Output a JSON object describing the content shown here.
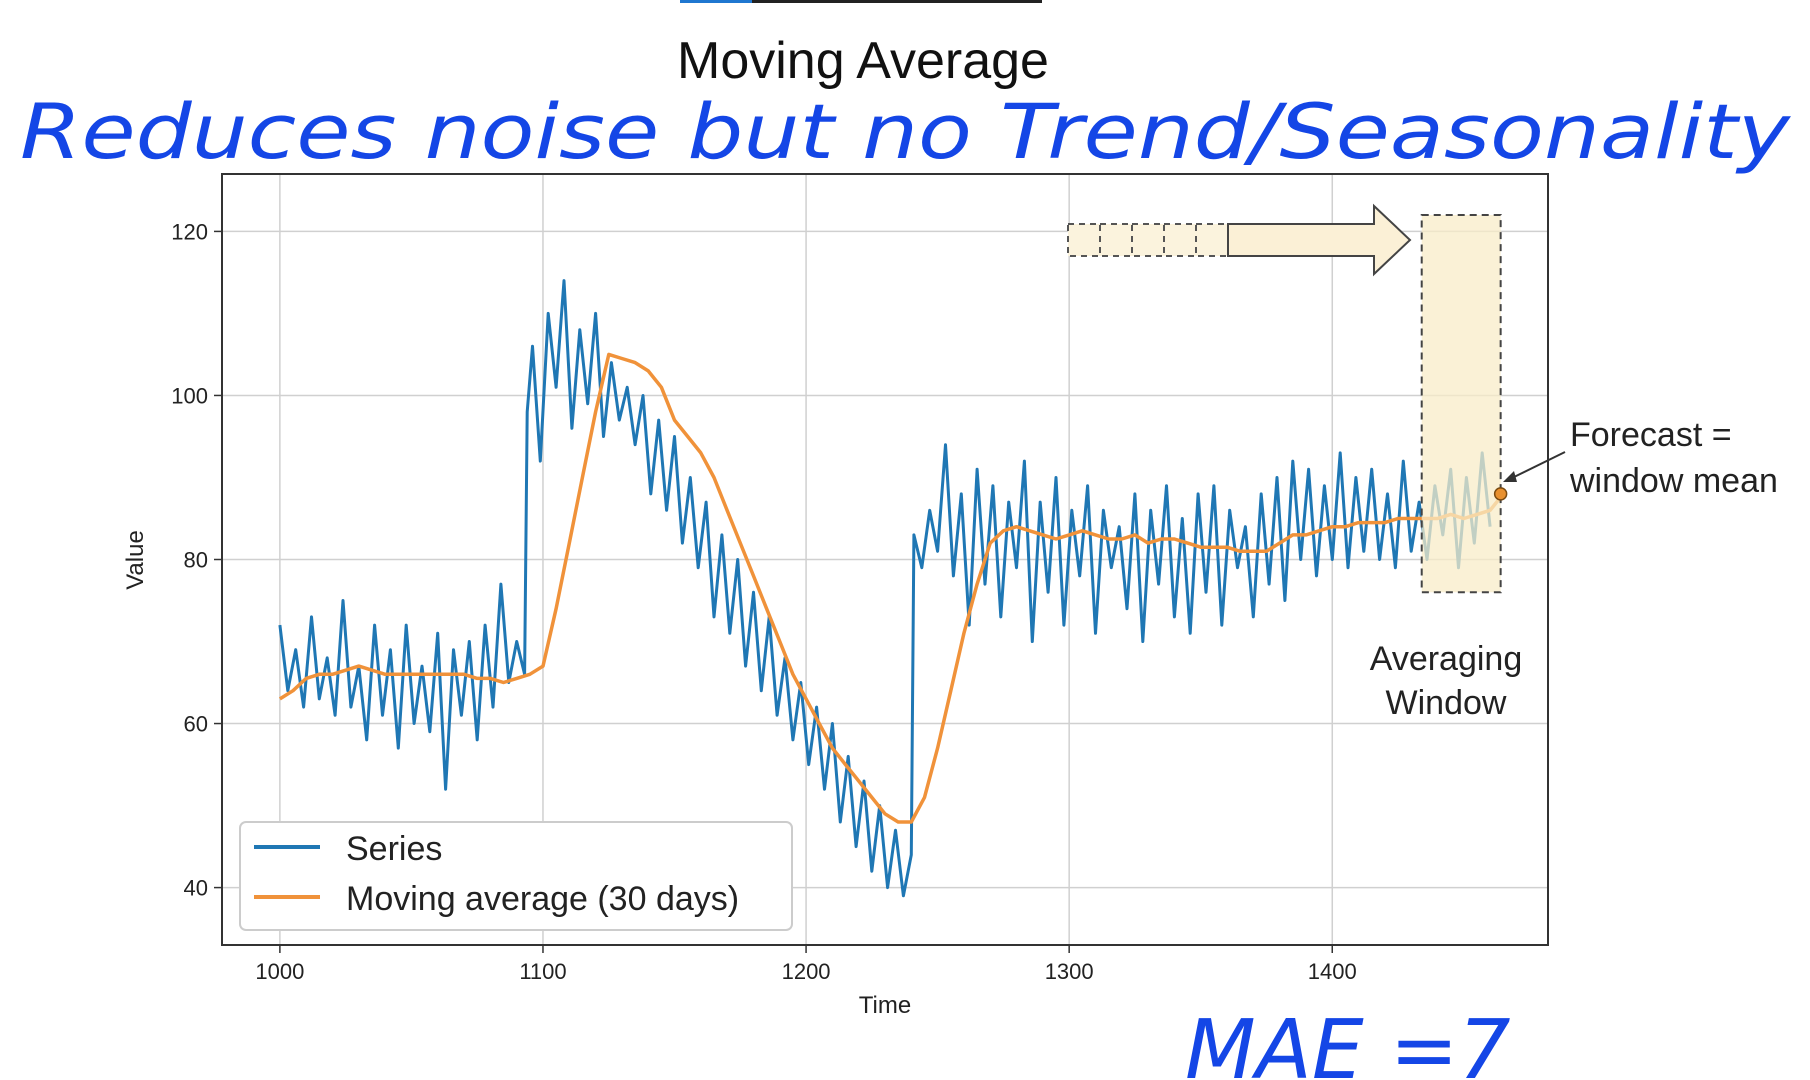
{
  "header_bar": {
    "accent_color": "#1f77d0"
  },
  "annotations": {
    "handwritten_note": "Reduces noise but no Trend/Seasonality",
    "handwritten_metric": "MAE =7",
    "ink_color": "#1446e6",
    "forecast_label_line1": "Forecast =",
    "forecast_label_line2": "window mean",
    "window_label_line1": "Averaging",
    "window_label_line2": "Window"
  },
  "chart_data": {
    "type": "line",
    "title": "Moving Average",
    "xlabel": "Time",
    "ylabel": "Value",
    "xlim": [
      978,
      1482
    ],
    "ylim": [
      33,
      127
    ],
    "xticks": [
      1000,
      1100,
      1200,
      1300,
      1400
    ],
    "yticks": [
      40,
      60,
      80,
      100,
      120
    ],
    "grid": true,
    "legend_position": "lower-left",
    "series": [
      {
        "name": "Series",
        "color": "#1f77b4",
        "x": [
          1000,
          1003,
          1006,
          1009,
          1012,
          1015,
          1018,
          1021,
          1024,
          1027,
          1030,
          1033,
          1036,
          1039,
          1042,
          1045,
          1048,
          1051,
          1054,
          1057,
          1060,
          1063,
          1066,
          1069,
          1072,
          1075,
          1078,
          1081,
          1084,
          1087,
          1090,
          1093,
          1094,
          1096,
          1099,
          1102,
          1105,
          1108,
          1111,
          1114,
          1117,
          1120,
          1123,
          1126,
          1129,
          1132,
          1135,
          1138,
          1141,
          1144,
          1147,
          1150,
          1153,
          1156,
          1159,
          1162,
          1165,
          1168,
          1171,
          1174,
          1177,
          1180,
          1183,
          1186,
          1189,
          1192,
          1195,
          1198,
          1201,
          1204,
          1207,
          1210,
          1213,
          1216,
          1219,
          1222,
          1225,
          1228,
          1231,
          1234,
          1237,
          1240,
          1241,
          1244,
          1247,
          1250,
          1253,
          1256,
          1259,
          1262,
          1265,
          1268,
          1271,
          1274,
          1277,
          1280,
          1283,
          1286,
          1289,
          1292,
          1295,
          1298,
          1301,
          1304,
          1307,
          1310,
          1313,
          1316,
          1319,
          1322,
          1325,
          1328,
          1331,
          1334,
          1337,
          1340,
          1343,
          1346,
          1349,
          1352,
          1355,
          1358,
          1361,
          1364,
          1367,
          1370,
          1373,
          1376,
          1379,
          1382,
          1385,
          1388,
          1391,
          1394,
          1397,
          1400,
          1403,
          1406,
          1409,
          1412,
          1415,
          1418,
          1421,
          1424,
          1427,
          1430,
          1433,
          1436,
          1439,
          1442,
          1445,
          1448,
          1451,
          1454,
          1457,
          1460
        ],
        "values": [
          72,
          64,
          69,
          62,
          73,
          63,
          68,
          61,
          75,
          62,
          67,
          58,
          72,
          61,
          69,
          57,
          72,
          60,
          67,
          59,
          71,
          52,
          69,
          61,
          70,
          58,
          72,
          62,
          77,
          65,
          70,
          66,
          98,
          106,
          92,
          110,
          101,
          114,
          96,
          108,
          99,
          110,
          95,
          104,
          97,
          101,
          94,
          100,
          88,
          97,
          86,
          95,
          82,
          90,
          79,
          87,
          73,
          83,
          71,
          80,
          67,
          76,
          64,
          73,
          61,
          68,
          58,
          65,
          55,
          62,
          52,
          60,
          48,
          56,
          45,
          53,
          42,
          50,
          40,
          47,
          39,
          44,
          83,
          79,
          86,
          81,
          94,
          78,
          88,
          72,
          91,
          77,
          89,
          73,
          87,
          79,
          92,
          70,
          87,
          76,
          90,
          72,
          86,
          78,
          89,
          71,
          86,
          79,
          84,
          74,
          88,
          70,
          86,
          77,
          89,
          73,
          85,
          71,
          88,
          76,
          89,
          72,
          86,
          79,
          84,
          73,
          88,
          77,
          90,
          75,
          92,
          80,
          91,
          78,
          89,
          80,
          93,
          79,
          90,
          81,
          91,
          80,
          88,
          79,
          92,
          81,
          87,
          80,
          89,
          83,
          91,
          79,
          90,
          82,
          93,
          84
        ]
      },
      {
        "name": "Moving average (30 days)",
        "color": "#f0923a",
        "x": [
          1000,
          1005,
          1010,
          1015,
          1020,
          1025,
          1030,
          1035,
          1040,
          1045,
          1050,
          1055,
          1060,
          1065,
          1070,
          1075,
          1080,
          1085,
          1090,
          1095,
          1100,
          1105,
          1110,
          1115,
          1120,
          1125,
          1130,
          1135,
          1140,
          1145,
          1150,
          1155,
          1160,
          1165,
          1170,
          1175,
          1180,
          1185,
          1190,
          1195,
          1200,
          1205,
          1210,
          1215,
          1220,
          1225,
          1230,
          1235,
          1240,
          1245,
          1250,
          1255,
          1260,
          1265,
          1270,
          1275,
          1280,
          1285,
          1290,
          1295,
          1300,
          1305,
          1310,
          1315,
          1320,
          1325,
          1330,
          1335,
          1340,
          1345,
          1350,
          1355,
          1360,
          1365,
          1370,
          1375,
          1380,
          1385,
          1390,
          1395,
          1400,
          1405,
          1410,
          1415,
          1420,
          1425,
          1430,
          1435,
          1440,
          1445,
          1450,
          1455,
          1460,
          1465
        ],
        "values": [
          63,
          64,
          65.5,
          66,
          66,
          66.5,
          67,
          66.5,
          66,
          66,
          66,
          66,
          66,
          66,
          66,
          65.5,
          65.5,
          65,
          65.5,
          66,
          67,
          74,
          82,
          90,
          98,
          105,
          104.5,
          104,
          103,
          101,
          97,
          95,
          93,
          90,
          86,
          82,
          78,
          74,
          70,
          66,
          63,
          60,
          57,
          55,
          53,
          51,
          49,
          48,
          48,
          51,
          57,
          64,
          71,
          77,
          82,
          83.5,
          84,
          83.5,
          83,
          82.5,
          83,
          83.5,
          83,
          82.5,
          82.5,
          83,
          82,
          82.5,
          82.5,
          82,
          81.5,
          81.5,
          81.5,
          81,
          81,
          81,
          82,
          83,
          83,
          83.5,
          84,
          84,
          84.5,
          84.5,
          84.5,
          85,
          85,
          85,
          85,
          85.5,
          85,
          85.5,
          86,
          88
        ]
      }
    ],
    "forecast_point": {
      "x": 1464,
      "y": 88
    },
    "averaging_window": {
      "x_start": 1434,
      "x_end": 1464,
      "y_min": 76,
      "y_max": 122
    }
  }
}
